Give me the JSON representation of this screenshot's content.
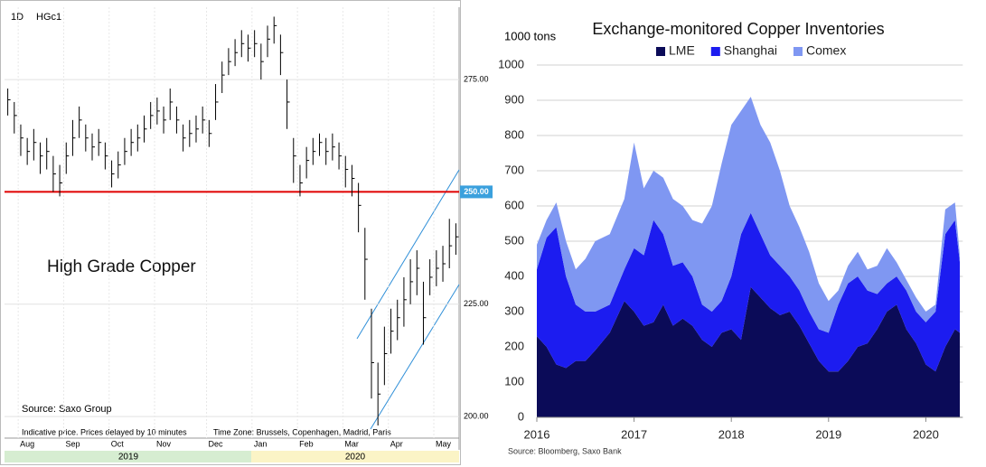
{
  "chart_data": [
    {
      "type": "ohlc",
      "symbol": "HGc1",
      "interval": "1D",
      "title": "High Grade Copper",
      "source": "Source: Saxo Group",
      "note": "Indicative price. Prices delayed by 10 minutes",
      "timezone": "Time Zone: Brussels, Copenhagen, Madrid, Paris",
      "categories": [
        null,
        null,
        null,
        "Aug",
        null,
        null,
        null,
        null,
        null,
        null,
        "Sep",
        null,
        null,
        null,
        null,
        null,
        null,
        "Oct",
        null,
        null,
        null,
        null,
        null,
        null,
        "Nov",
        null,
        null,
        null,
        null,
        null,
        null,
        null,
        "Dec",
        null,
        null,
        null,
        null,
        null,
        null,
        "Jan",
        null,
        null,
        null,
        null,
        null,
        null,
        "Feb",
        null,
        null,
        null,
        null,
        null,
        null,
        "Mar",
        null,
        null,
        null,
        null,
        null,
        null,
        "Apr",
        null,
        null,
        null,
        null,
        null,
        null,
        "May",
        null,
        null
      ],
      "high": [
        273,
        270,
        265,
        262,
        264,
        261,
        262,
        258,
        256,
        261,
        266,
        269,
        265,
        263,
        264,
        261,
        257,
        259,
        262,
        264,
        265,
        267,
        270,
        271,
        269,
        273,
        269,
        265,
        266,
        267,
        269,
        266,
        274,
        279,
        282,
        284,
        286,
        285,
        286,
        283,
        287,
        289,
        285,
        275,
        262,
        256,
        260,
        262,
        263,
        262,
        263,
        261,
        258,
        256,
        252,
        242,
        224,
        212,
        220,
        224,
        226,
        231,
        235,
        237,
        230,
        235,
        237,
        238,
        244,
        243
      ],
      "low": [
        267,
        263,
        258,
        256,
        257,
        254,
        255,
        250,
        249,
        254,
        258,
        262,
        259,
        257,
        258,
        255,
        251,
        253,
        256,
        258,
        259,
        261,
        264,
        265,
        263,
        266,
        263,
        259,
        260,
        261,
        263,
        260,
        266,
        272,
        276,
        278,
        280,
        279,
        280,
        275,
        280,
        283,
        276,
        264,
        252,
        249,
        253,
        256,
        258,
        256,
        257,
        255,
        251,
        249,
        241,
        226,
        204,
        198,
        207,
        214,
        217,
        220,
        225,
        227,
        216,
        227,
        229,
        230,
        233,
        236
      ],
      "close": [
        270.5,
        267,
        262,
        259,
        261,
        258,
        259,
        254,
        252,
        258,
        262,
        266,
        262,
        260,
        261,
        258,
        254,
        256,
        259,
        261,
        262,
        264,
        267,
        268,
        266,
        270,
        266,
        262,
        263,
        264,
        266,
        263,
        270,
        276,
        279,
        281,
        283,
        282,
        283,
        279,
        284,
        287,
        281,
        270,
        258,
        252,
        257,
        259,
        261,
        259,
        260,
        258,
        255,
        253,
        247,
        235,
        212,
        205,
        214,
        219,
        222,
        226,
        230,
        233,
        222,
        231,
        233,
        234,
        238,
        240
      ],
      "color": "#000000",
      "ylim": [
        195.2,
        291.1
      ],
      "yticks": [
        {
          "value": 200,
          "label": "200.00"
        },
        {
          "value": 225,
          "label": "225.00"
        },
        {
          "value": 275,
          "label": "275.00"
        }
      ],
      "reference_line": {
        "value": 250,
        "label": "250.00",
        "color": "#e00000"
      },
      "year_labels": [
        "2019",
        "2020"
      ],
      "grid": true
    },
    {
      "type": "stacked_area",
      "title": "Exchange-monitored Copper Inventories",
      "y_label": "1000  tons",
      "source": "Source: Bloomberg, Saxo Bank",
      "x": [
        2016,
        2016.1,
        2016.2,
        2016.3,
        2016.4,
        2016.5,
        2016.6,
        2016.75,
        2016.9,
        2017,
        2017.1,
        2017.2,
        2017.3,
        2017.4,
        2017.5,
        2017.6,
        2017.7,
        2017.8,
        2017.9,
        2018,
        2018.1,
        2018.2,
        2018.3,
        2018.4,
        2018.5,
        2018.6,
        2018.7,
        2018.8,
        2018.9,
        2019,
        2019.1,
        2019.2,
        2019.3,
        2019.4,
        2019.5,
        2019.6,
        2019.7,
        2019.8,
        2019.9,
        2020,
        2020.1,
        2020.2,
        2020.3,
        2020.35
      ],
      "series": [
        {
          "name": "LME",
          "color": "#0b0b58",
          "values": [
            230,
            200,
            150,
            140,
            160,
            160,
            190,
            240,
            330,
            300,
            260,
            270,
            320,
            260,
            280,
            260,
            220,
            200,
            240,
            250,
            220,
            370,
            340,
            310,
            290,
            300,
            260,
            210,
            160,
            130,
            130,
            160,
            200,
            210,
            250,
            300,
            320,
            250,
            210,
            150,
            130,
            200,
            250,
            240
          ]
        },
        {
          "name": "Shanghai",
          "color": "#1c1cf0",
          "values": [
            190,
            310,
            390,
            260,
            160,
            140,
            110,
            80,
            90,
            180,
            200,
            290,
            200,
            170,
            160,
            140,
            100,
            100,
            90,
            150,
            300,
            210,
            180,
            150,
            140,
            100,
            100,
            90,
            90,
            110,
            190,
            220,
            200,
            150,
            100,
            80,
            80,
            110,
            90,
            120,
            170,
            320,
            310,
            200
          ]
        },
        {
          "name": "Comex",
          "color": "#7f97f2",
          "values": [
            70,
            50,
            70,
            100,
            100,
            150,
            200,
            200,
            200,
            300,
            190,
            140,
            160,
            190,
            160,
            160,
            230,
            300,
            390,
            430,
            350,
            330,
            310,
            320,
            270,
            200,
            180,
            170,
            130,
            90,
            40,
            50,
            70,
            60,
            80,
            100,
            40,
            30,
            40,
            30,
            20,
            70,
            50,
            20
          ]
        }
      ],
      "xlim": [
        2016,
        2020.38
      ],
      "xticks": [
        2016,
        2017,
        2018,
        2019,
        2020
      ],
      "ylim": [
        0,
        1000
      ],
      "yticks": [
        0,
        100,
        200,
        300,
        400,
        500,
        600,
        700,
        800,
        900,
        1000
      ],
      "grid": true
    }
  ]
}
